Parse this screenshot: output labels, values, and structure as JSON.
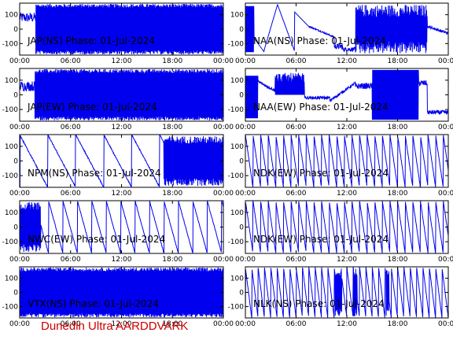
{
  "chart_data": {
    "type": "line",
    "footer": "Dunedin Ultra AARDDVARK",
    "x_ticks": [
      "00:00",
      "06:00",
      "12:00",
      "18:00",
      "00:00"
    ],
    "xlim_hours": [
      0,
      24
    ],
    "y_ticks": [
      100,
      0,
      -100
    ],
    "ylim": [
      -180,
      180
    ],
    "line_color": "#0000ee",
    "panels": [
      {
        "title": "JAP(NS) Phase: 01-Jul-2024",
        "pattern": "dense",
        "from_hour": 1.9,
        "to_hour": 24,
        "early_value": 80
      },
      {
        "title": "NAA(NS) Phase: 01-Jul-2024",
        "pattern": "naa_ns"
      },
      {
        "title": "JAP(EW) Phase: 01-Jul-2024",
        "pattern": "dense",
        "from_hour": 1.8,
        "to_hour": 24,
        "early_value": 60
      },
      {
        "title": "NAA(EW) Phase: 01-Jul-2024",
        "pattern": "naa_ew"
      },
      {
        "title": "NPM(NS) Phase: 01-Jul-2024",
        "pattern": "sawtooth",
        "period_hours": 3.3,
        "to_hour": 16.5,
        "dense_after": 17
      },
      {
        "title": "NDK(EW) Phase: 01-Jul-2024",
        "pattern": "sawtooth",
        "period_hours": 0.9,
        "to_hour": 24,
        "dense_after": 24
      },
      {
        "title": "NWC(EW) Phase: 01-Jul-2024",
        "pattern": "sawtooth",
        "period_hours": 1.7,
        "to_hour": 24,
        "dense_after": 24,
        "dense_before": 2.5
      },
      {
        "title": "NDK(EW) Phase: 01-Jul-2024",
        "pattern": "sawtooth",
        "period_hours": 0.9,
        "to_hour": 24,
        "dense_after": 24
      },
      {
        "title": "VTX(NS) Phase: 01-Jul-2024",
        "pattern": "dense",
        "from_hour": 0,
        "to_hour": 24
      },
      {
        "title": "NLK(NS) Phase: 01-Jul-2024",
        "pattern": "sawtooth",
        "period_hours": 0.75,
        "to_hour": 24,
        "dense_after": 24,
        "dense_windows": [
          [
            10.6,
            11.4
          ],
          [
            12.8,
            13.2
          ],
          [
            16.6,
            17.0
          ]
        ]
      }
    ]
  }
}
